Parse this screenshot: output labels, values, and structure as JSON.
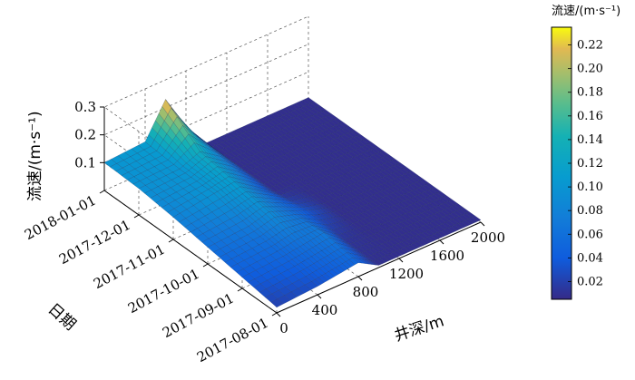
{
  "chart_data": {
    "type": "surface3d",
    "xlabel": "井深/m",
    "ylabel": "日期",
    "zlabel": "流速/(m·s⁻¹)",
    "colorbar_title": "流速/(m·s⁻¹)",
    "x_ticks": [
      "0",
      "400",
      "800",
      "1200",
      "1600",
      "2000"
    ],
    "y_ticks": [
      "2017-08-01",
      "2017-09-01",
      "2017-10-01",
      "2017-11-01",
      "2017-12-01",
      "2018-01-01"
    ],
    "z_ticks": [
      "0.1",
      "0.2",
      "0.3"
    ],
    "colorbar_ticks": [
      "0.02",
      "0.04",
      "0.06",
      "0.08",
      "0.10",
      "0.12",
      "0.14",
      "0.16",
      "0.18",
      "0.20",
      "0.22"
    ],
    "xlim": [
      0,
      2000
    ],
    "zlim": [
      0,
      0.3
    ],
    "colorbar_range": [
      0.005,
      0.235
    ],
    "grid": true,
    "colormap": "parula",
    "depths": [
      0,
      400,
      600,
      800,
      1000,
      1200,
      1400,
      1600,
      1800,
      2000
    ],
    "rows": [
      {
        "date": "2017-08-01",
        "values": [
          0.02,
          0.03,
          0.04,
          0.05,
          0.008,
          0.008,
          0.008,
          0.008,
          0.008,
          0.008
        ]
      },
      {
        "date": "2017-09-01",
        "values": [
          0.04,
          0.05,
          0.06,
          0.07,
          0.012,
          0.008,
          0.008,
          0.008,
          0.008,
          0.008
        ]
      },
      {
        "date": "2017-10-01",
        "values": [
          0.06,
          0.07,
          0.09,
          0.06,
          0.03,
          0.008,
          0.008,
          0.008,
          0.008,
          0.008
        ]
      },
      {
        "date": "2017-11-01",
        "values": [
          0.08,
          0.1,
          0.11,
          0.06,
          0.008,
          0.008,
          0.008,
          0.008,
          0.008,
          0.008
        ]
      },
      {
        "date": "2017-12-01",
        "values": [
          0.095,
          0.1,
          0.13,
          0.08,
          0.008,
          0.008,
          0.008,
          0.008,
          0.008,
          0.008
        ]
      },
      {
        "date": "2018-01-01",
        "values": [
          0.1,
          0.11,
          0.23,
          0.1,
          0.008,
          0.008,
          0.008,
          0.008,
          0.008,
          0.008
        ]
      }
    ]
  }
}
